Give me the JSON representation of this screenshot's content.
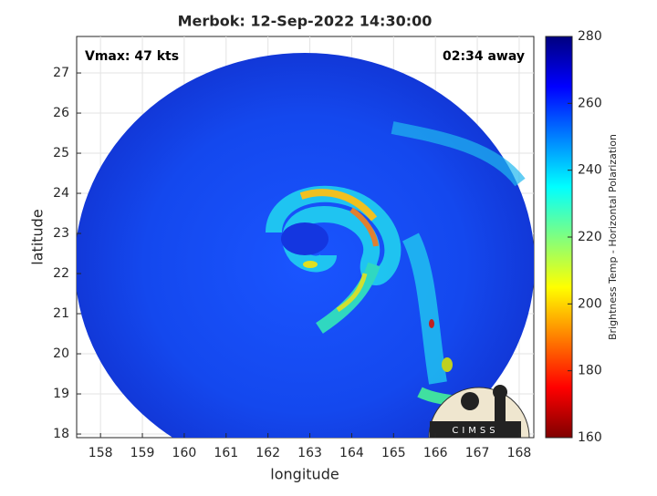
{
  "chart_data": {
    "type": "map",
    "title": "Merbok: 12-Sep-2022 14:30:00",
    "annotation_left": "Vmax: 47 kts",
    "annotation_right": "02:34 away",
    "xlabel": "longitude",
    "ylabel": "latitude",
    "xlim": [
      157.43,
      168.35
    ],
    "ylim": [
      17.91,
      27.91
    ],
    "xticks": [
      158,
      159,
      160,
      161,
      162,
      163,
      164,
      165,
      166,
      167,
      168
    ],
    "yticks": [
      18,
      19,
      20,
      21,
      22,
      23,
      24,
      25,
      26,
      27
    ],
    "grid": true,
    "colorbar": {
      "label": "Brightness Temp - Horizontal Polarization",
      "lim": [
        160,
        280
      ],
      "ticks": [
        160,
        180,
        200,
        220,
        240,
        260,
        280
      ],
      "colormap": "jet"
    },
    "logo_text": "CIMSS"
  }
}
